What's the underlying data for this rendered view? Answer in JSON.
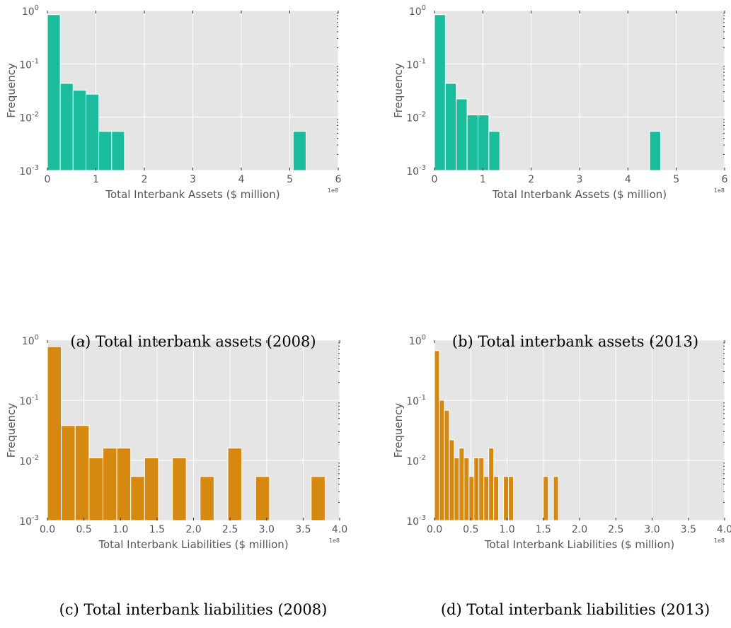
{
  "colors": {
    "assets_bar": "#1abc9c",
    "liabilities_bar": "#d68910",
    "plot_background": "#e5e5e5",
    "grid": "#ffffff",
    "text": "#555555"
  },
  "chart_data": [
    {
      "id": "a",
      "type": "bar",
      "caption": "(a)  Total interbank assets (2008)",
      "xlabel": "Total Interbank Assets ($ million)",
      "ylabel": "Frequency",
      "x_offset_text": "1e8",
      "xlim": [
        0,
        6
      ],
      "ylim": [
        0.001,
        1
      ],
      "yscale": "log",
      "xticks": [
        0,
        1,
        2,
        3,
        4,
        5,
        6
      ],
      "xtick_labels": [
        "0",
        "1",
        "2",
        "3",
        "4",
        "5",
        "6"
      ],
      "ytick_labels": [
        "10^-3",
        "10^-2",
        "10^-1",
        "10^0"
      ],
      "grid": true,
      "bin_width": 0.265,
      "bins": [
        {
          "x": 0.0,
          "value": 0.84
        },
        {
          "x": 0.265,
          "value": 0.043
        },
        {
          "x": 0.53,
          "value": 0.032
        },
        {
          "x": 0.795,
          "value": 0.027
        },
        {
          "x": 1.06,
          "value": 0.0054
        },
        {
          "x": 1.325,
          "value": 0.0054
        },
        {
          "x": 5.07,
          "value": 0.0054
        }
      ]
    },
    {
      "id": "b",
      "type": "bar",
      "caption": "(b)  Total interbank assets (2013)",
      "xlabel": "Total Interbank Assets ($ million)",
      "ylabel": "Frequency",
      "x_offset_text": "1e8",
      "xlim": [
        0,
        6
      ],
      "ylim": [
        0.001,
        1
      ],
      "yscale": "log",
      "xticks": [
        0,
        1,
        2,
        3,
        4,
        5,
        6
      ],
      "xtick_labels": [
        "0",
        "1",
        "2",
        "3",
        "4",
        "5",
        "6"
      ],
      "ytick_labels": [
        "10^-3",
        "10^-2",
        "10^-1",
        "10^0"
      ],
      "grid": true,
      "bin_width": 0.225,
      "bins": [
        {
          "x": 0.0,
          "value": 0.84
        },
        {
          "x": 0.225,
          "value": 0.043
        },
        {
          "x": 0.45,
          "value": 0.022
        },
        {
          "x": 0.675,
          "value": 0.011
        },
        {
          "x": 0.9,
          "value": 0.011
        },
        {
          "x": 1.125,
          "value": 0.0054
        },
        {
          "x": 4.45,
          "value": 0.0054
        }
      ]
    },
    {
      "id": "c",
      "type": "bar",
      "caption": "(c)  Total interbank liabilities (2008)",
      "xlabel": "Total Interbank Liabilities ($ million)",
      "ylabel": "Frequency",
      "x_offset_text": "1e8",
      "xlim": [
        0,
        4
      ],
      "ylim": [
        0.001,
        1
      ],
      "yscale": "log",
      "xticks": [
        0,
        0.5,
        1,
        1.5,
        2,
        2.5,
        3,
        3.5,
        4
      ],
      "xtick_labels": [
        "0.0",
        "0.5",
        "1.0",
        "1.5",
        "2.0",
        "2.5",
        "3.0",
        "3.5",
        "4.0"
      ],
      "ytick_labels": [
        "10^-3",
        "10^-2",
        "10^-1",
        "10^0"
      ],
      "grid": true,
      "bin_width": 0.19,
      "bins": [
        {
          "x": 0.0,
          "value": 0.78
        },
        {
          "x": 0.19,
          "value": 0.038
        },
        {
          "x": 0.38,
          "value": 0.038
        },
        {
          "x": 0.57,
          "value": 0.011
        },
        {
          "x": 0.76,
          "value": 0.016
        },
        {
          "x": 0.95,
          "value": 0.016
        },
        {
          "x": 1.14,
          "value": 0.0054
        },
        {
          "x": 1.33,
          "value": 0.011
        },
        {
          "x": 1.71,
          "value": 0.011
        },
        {
          "x": 2.09,
          "value": 0.0054
        },
        {
          "x": 2.47,
          "value": 0.016
        },
        {
          "x": 2.85,
          "value": 0.0054
        },
        {
          "x": 3.61,
          "value": 0.0054
        }
      ]
    },
    {
      "id": "d",
      "type": "bar",
      "caption": "(d)  Total interbank liabilities (2013)",
      "xlabel": "Total Interbank Liabilities ($ million)",
      "ylabel": "Frequency",
      "x_offset_text": "1e8",
      "xlim": [
        0,
        4
      ],
      "ylim": [
        0.001,
        1
      ],
      "yscale": "log",
      "xticks": [
        0,
        0.5,
        1,
        1.5,
        2,
        2.5,
        3,
        3.5,
        4
      ],
      "xtick_labels": [
        "0.0",
        "0.5",
        "1.0",
        "1.5",
        "2.0",
        "2.5",
        "3.0",
        "3.5",
        "4.0"
      ],
      "ytick_labels": [
        "10^-3",
        "10^-2",
        "10^-1",
        "10^0"
      ],
      "grid": true,
      "bin_width": 0.068,
      "bins": [
        {
          "x": 0.0,
          "value": 0.67
        },
        {
          "x": 0.068,
          "value": 0.1
        },
        {
          "x": 0.136,
          "value": 0.068
        },
        {
          "x": 0.204,
          "value": 0.022
        },
        {
          "x": 0.272,
          "value": 0.011
        },
        {
          "x": 0.34,
          "value": 0.016
        },
        {
          "x": 0.408,
          "value": 0.011
        },
        {
          "x": 0.476,
          "value": 0.0054
        },
        {
          "x": 0.544,
          "value": 0.011
        },
        {
          "x": 0.612,
          "value": 0.011
        },
        {
          "x": 0.68,
          "value": 0.0054
        },
        {
          "x": 0.748,
          "value": 0.016
        },
        {
          "x": 0.816,
          "value": 0.0054
        },
        {
          "x": 0.952,
          "value": 0.0054
        },
        {
          "x": 1.02,
          "value": 0.0054
        },
        {
          "x": 1.5,
          "value": 0.0054
        },
        {
          "x": 1.64,
          "value": 0.0054
        }
      ]
    }
  ]
}
